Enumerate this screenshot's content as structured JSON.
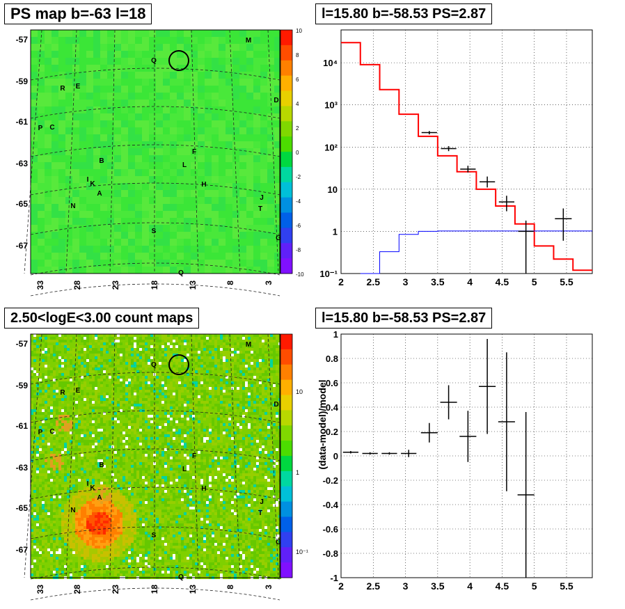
{
  "panels": {
    "top_left_title": "PS map b=-63 l=18",
    "top_right_title": "l=15.80 b=-58.53 PS=2.87",
    "bottom_left_title": "2.50<logE<3.00 count maps",
    "bottom_right_title": "l=15.80 b=-58.53 PS=2.87"
  },
  "chart_data": [
    {
      "type": "heatmap",
      "title": "PS map b=-63 l=18",
      "y_ticks": [
        "-57",
        "-59",
        "-61",
        "-63",
        "-65",
        "-67"
      ],
      "x_ticks": [
        "33",
        "28",
        "23",
        "18",
        "13",
        "8",
        "3"
      ],
      "colorbar_ticks": [
        "10",
        "8",
        "6",
        "4",
        "2",
        "0",
        "-2",
        "-4",
        "-6",
        "-8",
        "-10"
      ],
      "colorbar_range": [
        -10,
        10
      ],
      "sources": [
        "M",
        "Q",
        "R",
        "E",
        "D",
        "P",
        "C",
        "F",
        "B",
        "L",
        "I",
        "K",
        "H",
        "A",
        "J",
        "N",
        "T",
        "S",
        "G",
        "Q"
      ],
      "colors": {
        "background": "#3fe83a"
      }
    },
    {
      "type": "line",
      "title": "l=15.80 b=-58.53 PS=2.87",
      "y_scale": "log",
      "xlim": [
        2,
        5.9
      ],
      "ylim": [
        0.1,
        60000
      ],
      "x_ticks": [
        "2",
        "2.5",
        "3",
        "3.5",
        "4",
        "4.5",
        "5",
        "5.5"
      ],
      "y_ticks": [
        "10^-1",
        "1",
        "10",
        "10^2",
        "10^3",
        "10^4"
      ],
      "series": [
        {
          "color": "#ff0000",
          "step_edges": [
            2,
            2.3,
            2.6,
            2.9,
            3.2,
            3.5,
            3.8,
            4.1,
            4.4,
            4.7,
            5.0,
            5.3,
            5.6,
            5.9
          ],
          "values": [
            30000,
            9000,
            2300,
            600,
            180,
            62,
            26,
            10,
            4,
            1.5,
            0.45,
            0.22,
            0.12
          ]
        },
        {
          "color": "#0000ff",
          "step_edges": [
            2.3,
            2.6,
            2.9,
            3.2,
            3.5,
            3.8,
            4.1,
            4.4,
            4.7,
            5.0,
            5.3,
            5.6,
            5.9
          ],
          "values": [
            0.1,
            0.33,
            0.85,
            1.0,
            1.02,
            1.02,
            1.02,
            1.02,
            1.02,
            1.02,
            1.02,
            1.02
          ]
        },
        {
          "color": "#000000",
          "points": [
            {
              "x": 2.15,
              "y": 30000
            },
            {
              "x": 2.45,
              "y": 9000
            },
            {
              "x": 3.37,
              "y": 220,
              "xerr": 0.12,
              "ylo": 200,
              "yhi": 240
            },
            {
              "x": 3.67,
              "y": 92,
              "xerr": 0.12,
              "ylo": 80,
              "yhi": 105
            },
            {
              "x": 3.97,
              "y": 30,
              "xerr": 0.12,
              "ylo": 25,
              "yhi": 36
            },
            {
              "x": 4.27,
              "y": 15,
              "xerr": 0.12,
              "ylo": 11,
              "yhi": 20
            },
            {
              "x": 4.57,
              "y": 5,
              "xerr": 0.12,
              "ylo": 3,
              "yhi": 7
            },
            {
              "x": 4.87,
              "y": 1.0,
              "xerr": 0.12,
              "ylo": 0.1,
              "yhi": 1.8
            },
            {
              "x": 5.45,
              "y": 2.0,
              "xerr": 0.13,
              "ylo": 0.6,
              "yhi": 3.5
            }
          ]
        }
      ]
    },
    {
      "type": "heatmap",
      "title": "2.50<logE<3.00 count maps",
      "y_ticks": [
        "-57",
        "-59",
        "-61",
        "-63",
        "-65",
        "-67"
      ],
      "x_ticks": [
        "33",
        "28",
        "23",
        "18",
        "13",
        "8",
        "3"
      ],
      "colorbar_ticks": [
        "10",
        "1",
        "10^-1"
      ],
      "colorbar_scale": "log",
      "sources": [
        "M",
        "Q",
        "R",
        "E",
        "D",
        "P",
        "C",
        "F",
        "B",
        "L",
        "I",
        "K",
        "H",
        "A",
        "J",
        "N",
        "T",
        "S",
        "G",
        "Q"
      ]
    },
    {
      "type": "scatter",
      "title": "l=15.80 b=-58.53 PS=2.87",
      "ylabel": "(data-model)/model",
      "xlim": [
        2,
        5.9
      ],
      "ylim": [
        -1,
        1
      ],
      "x_ticks": [
        "2",
        "2.5",
        "3",
        "3.5",
        "4",
        "4.5",
        "5",
        "5.5"
      ],
      "y_ticks": [
        "1",
        "0.8",
        "0.6",
        "0.4",
        "0.2",
        "0",
        "-0.2",
        "-0.4",
        "-0.6",
        "-0.8",
        "-1"
      ],
      "points": [
        {
          "x": 2.15,
          "y": 0.03,
          "xerr": 0.12,
          "yerr": 0.01
        },
        {
          "x": 2.45,
          "y": 0.02,
          "xerr": 0.12,
          "yerr": 0.01
        },
        {
          "x": 2.75,
          "y": 0.02,
          "xerr": 0.12,
          "yerr": 0.01
        },
        {
          "x": 3.05,
          "y": 0.02,
          "xerr": 0.12,
          "yerr": 0.03
        },
        {
          "x": 3.37,
          "y": 0.19,
          "xerr": 0.13,
          "yerr": 0.08
        },
        {
          "x": 3.67,
          "y": 0.44,
          "xerr": 0.13,
          "yerr": 0.14
        },
        {
          "x": 3.97,
          "y": 0.16,
          "xerr": 0.13,
          "yerr": 0.21
        },
        {
          "x": 4.27,
          "y": 0.57,
          "xerr": 0.13,
          "yerr": 0.39
        },
        {
          "x": 4.57,
          "y": 0.28,
          "xerr": 0.13,
          "yerr": 0.57
        },
        {
          "x": 4.87,
          "y": -0.32,
          "xerr": 0.13,
          "yerr": 0.68
        }
      ]
    }
  ]
}
